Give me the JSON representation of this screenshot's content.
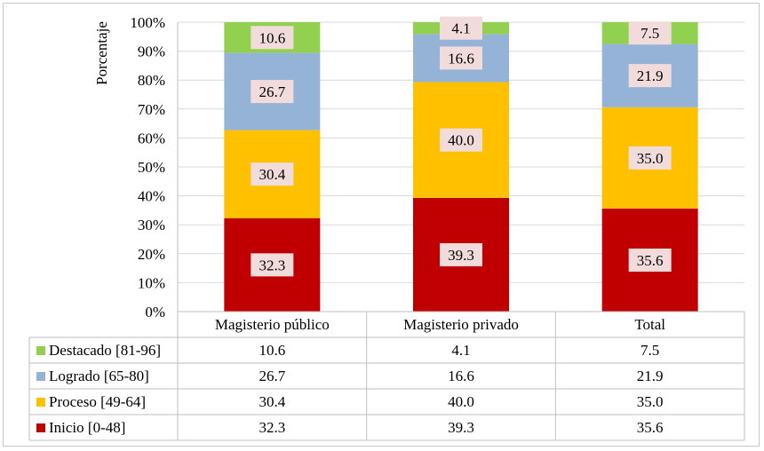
{
  "chart_data": {
    "type": "bar",
    "stacked": true,
    "percent": true,
    "ylabel": "Porcentaje",
    "xlabel": "",
    "ylim": [
      0,
      100
    ],
    "yticks": [
      "0%",
      "10%",
      "20%",
      "30%",
      "40%",
      "50%",
      "60%",
      "70%",
      "80%",
      "90%",
      "100%"
    ],
    "categories": [
      "Magisterio público",
      "Magisterio privado",
      "Total"
    ],
    "series": [
      {
        "name": "Inicio [0-48]",
        "color": "#c00000",
        "values": [
          32.3,
          39.3,
          35.6
        ],
        "labels": [
          "32.3",
          "39.3",
          "35.6"
        ]
      },
      {
        "name": "Proceso [49-64]",
        "color": "#ffc000",
        "values": [
          30.4,
          40.0,
          35.0
        ],
        "labels": [
          "30.4",
          "40.0",
          "35.0"
        ]
      },
      {
        "name": "Logrado [65-80]",
        "color": "#95b3d7",
        "values": [
          26.7,
          16.6,
          21.9
        ],
        "labels": [
          "26.7",
          "16.6",
          "21.9"
        ]
      },
      {
        "name": "Destacado [81-96]",
        "color": "#92d050",
        "values": [
          10.6,
          4.1,
          7.5
        ],
        "labels": [
          "10.6",
          "4.1",
          "7.5"
        ]
      }
    ],
    "data_table": true,
    "grid": true,
    "label_box_color": "#f2dcdb"
  }
}
